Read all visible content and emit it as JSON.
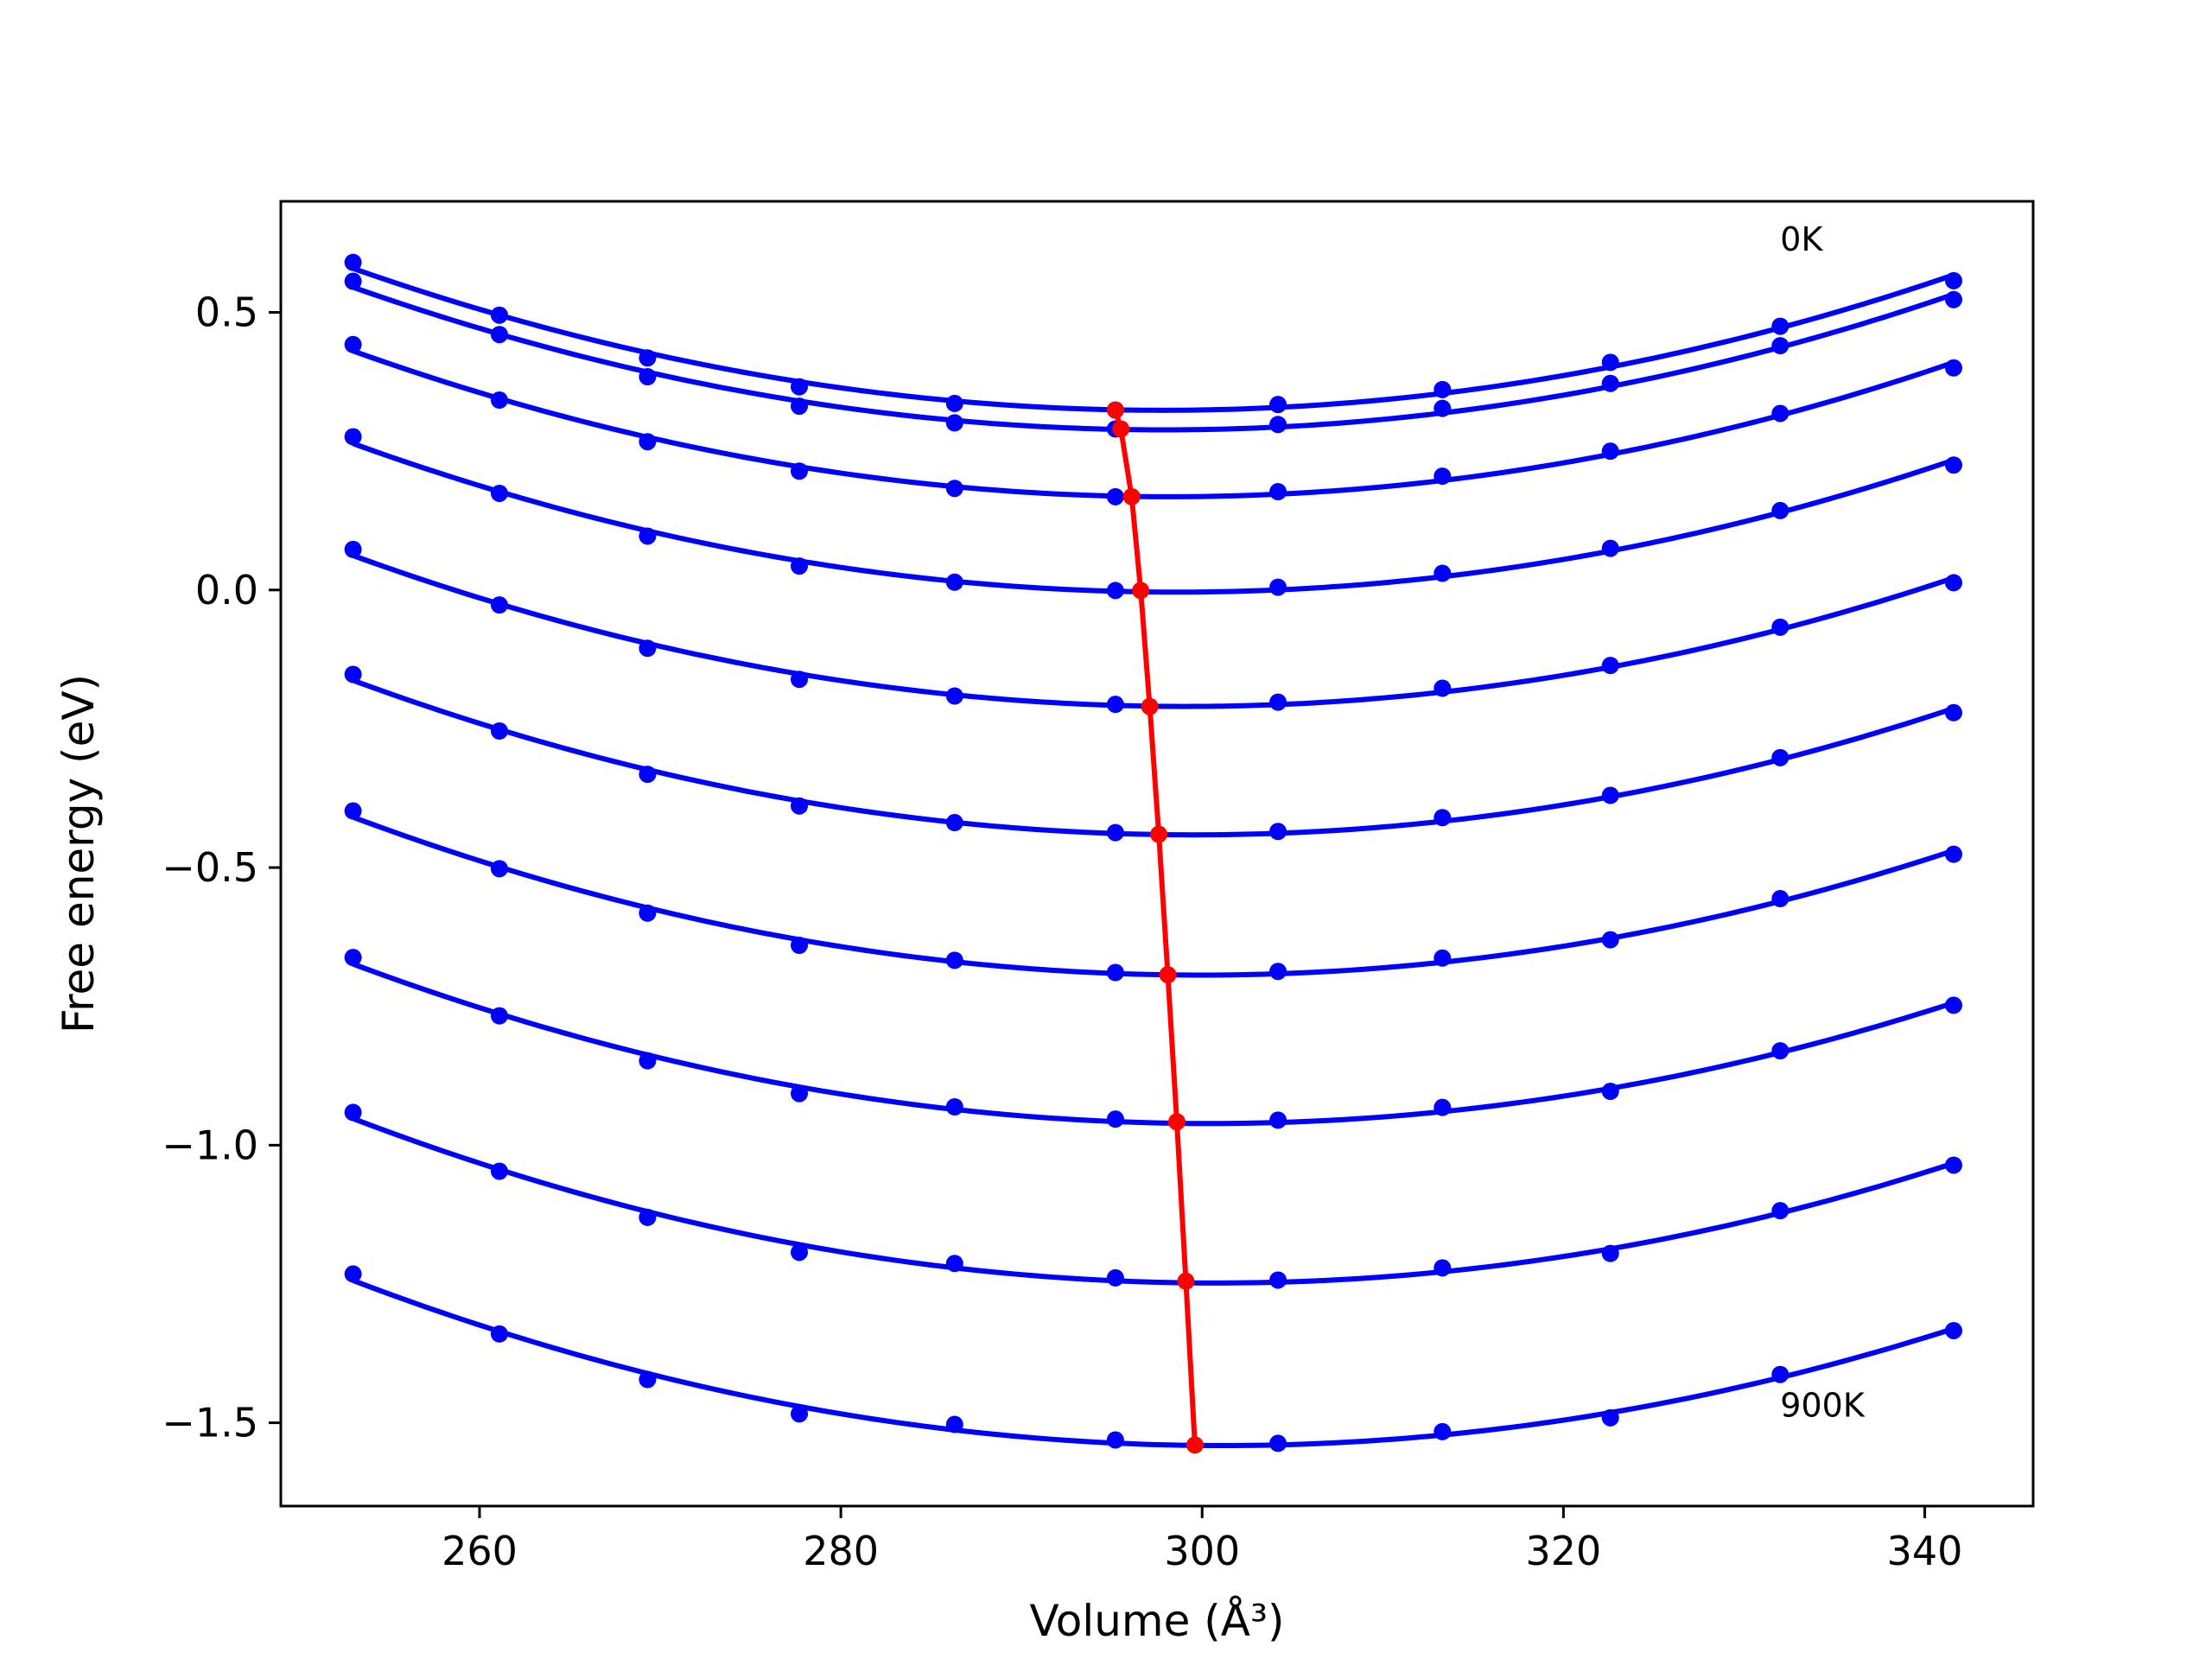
{
  "chart_data": {
    "type": "line",
    "xlabel": "Volume (Å³)",
    "ylabel": "Free energy (eV)",
    "xlim": [
      249,
      346
    ],
    "ylim": [
      -1.65,
      0.7
    ],
    "xticks": [
      260,
      280,
      300,
      320,
      340
    ],
    "yticks": [
      0.5,
      0.0,
      -0.5,
      -1.0,
      -1.5
    ],
    "ytick_labels": [
      "0.5",
      "0.0",
      "−0.5",
      "−1.0",
      "−1.5"
    ],
    "grid": false,
    "annotations": [
      {
        "text": "0K",
        "x": 332,
        "y": 0.63
      },
      {
        "text": "900K",
        "x": 332,
        "y": -1.47
      }
    ],
    "volumes": [
      253.0,
      261.1,
      269.3,
      277.7,
      286.3,
      295.2,
      304.2,
      313.3,
      322.6,
      332.0,
      341.6
    ],
    "curve_color": "#0000ff",
    "min_color": "#ff0000",
    "series": [
      {
        "values": [
          0.59,
          0.495,
          0.418,
          0.366,
          0.336,
          0.324,
          0.334,
          0.361,
          0.41,
          0.475,
          0.557
        ],
        "minimum": {
          "volume": 295.2,
          "energy": 0.324
        }
      },
      {
        "values": [
          0.556,
          0.46,
          0.384,
          0.331,
          0.301,
          0.29,
          0.298,
          0.327,
          0.372,
          0.44,
          0.523
        ],
        "minimum": {
          "volume": 295.5,
          "energy": 0.29
        }
      },
      {
        "values": [
          0.442,
          0.342,
          0.267,
          0.214,
          0.183,
          0.168,
          0.177,
          0.205,
          0.25,
          0.318,
          0.4
        ],
        "minimum": {
          "volume": 296.1,
          "energy": 0.168
        }
      },
      {
        "values": [
          0.276,
          0.174,
          0.097,
          0.043,
          0.014,
          -0.001,
          0.005,
          0.03,
          0.075,
          0.143,
          0.225
        ],
        "minimum": {
          "volume": 296.6,
          "energy": -0.001
        }
      },
      {
        "values": [
          0.073,
          -0.027,
          -0.105,
          -0.161,
          -0.191,
          -0.206,
          -0.202,
          -0.177,
          -0.136,
          -0.067,
          0.013
        ],
        "minimum": {
          "volume": 297.1,
          "energy": -0.21
        }
      },
      {
        "values": [
          -0.152,
          -0.254,
          -0.332,
          -0.389,
          -0.419,
          -0.437,
          -0.435,
          -0.41,
          -0.37,
          -0.302,
          -0.221
        ],
        "minimum": {
          "volume": 297.6,
          "energy": -0.44
        }
      },
      {
        "values": [
          -0.398,
          -0.502,
          -0.582,
          -0.64,
          -0.667,
          -0.689,
          -0.687,
          -0.663,
          -0.63,
          -0.556,
          -0.476
        ],
        "minimum": {
          "volume": 298.1,
          "energy": -0.693
        }
      },
      {
        "values": [
          -0.662,
          -0.767,
          -0.848,
          -0.907,
          -0.931,
          -0.953,
          -0.955,
          -0.932,
          -0.903,
          -0.83,
          -0.748
        ],
        "minimum": {
          "volume": 298.6,
          "energy": -0.958
        }
      },
      {
        "values": [
          -0.941,
          -1.047,
          -1.13,
          -1.193,
          -1.213,
          -1.239,
          -1.243,
          -1.221,
          -1.195,
          -1.118,
          -1.036
        ],
        "minimum": {
          "volume": 299.1,
          "energy": -1.245
        }
      },
      {
        "values": [
          -1.232,
          -1.34,
          -1.422,
          -1.484,
          -1.503,
          -1.531,
          -1.537,
          -1.516,
          -1.491,
          -1.413,
          -1.334
        ],
        "minimum": {
          "volume": 299.6,
          "energy": -1.54
        }
      }
    ]
  }
}
